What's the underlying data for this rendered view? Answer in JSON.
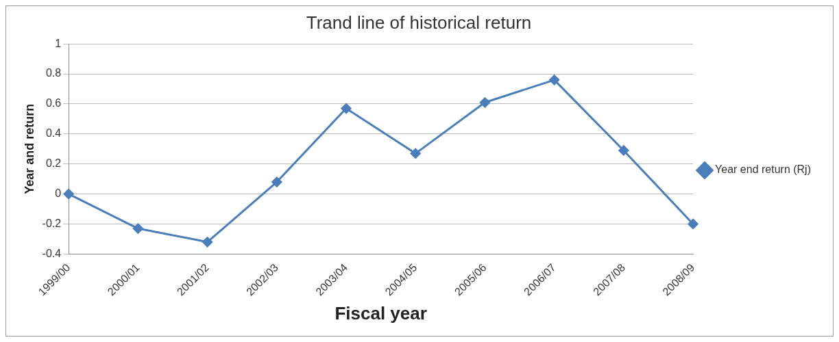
{
  "chart_data": {
    "type": "line",
    "title": "Trand line of historical return",
    "xlabel": "Fiscal year",
    "ylabel": "Year and return",
    "categories": [
      "1999/00",
      "2000/01",
      "2001/02",
      "2002/03",
      "2003/04",
      "2004/05",
      "2005/06",
      "2006/07",
      "2007/08",
      "2008/09"
    ],
    "series": [
      {
        "name": "Year end return (Rj)",
        "color": "#4a7ebb",
        "values": [
          0,
          -0.23,
          -0.32,
          0.08,
          0.57,
          0.27,
          0.61,
          0.76,
          0.29,
          -0.2
        ]
      }
    ],
    "ylim": [
      -0.4,
      1
    ],
    "yticks": [
      -0.4,
      -0.2,
      0,
      0.2,
      0.4,
      0.6,
      0.8,
      1
    ],
    "grid": "y",
    "legend": "right",
    "marker": "diamond",
    "line_style": "solid"
  }
}
